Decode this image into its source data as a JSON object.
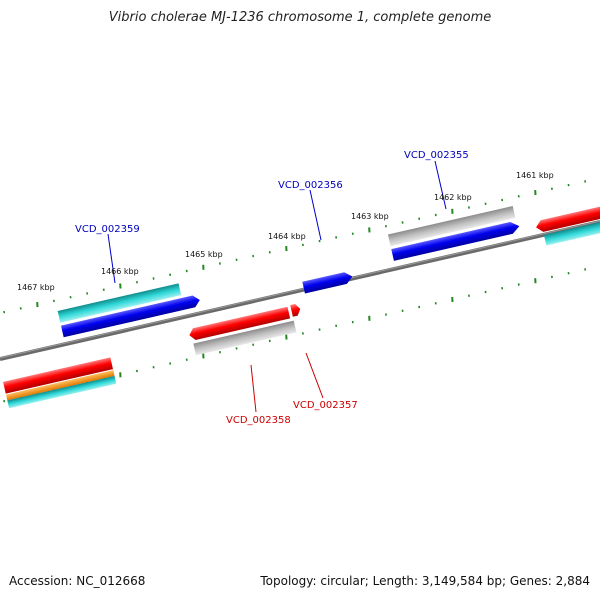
{
  "title": "Vibrio cholerae MJ-1236 chromosome 1, complete genome",
  "footer": {
    "accession": "Accession: NC_012668",
    "topology": "Topology: circular; Length: 3,149,584 bp; Genes: 2,884"
  },
  "colors": {
    "backbone": "#777777",
    "forward_cds": "#e00000",
    "reverse_cds": "#0000dd",
    "gene_forward": "#20c8c8",
    "gene_reverse": "#b8b8b8",
    "other": "#f09010",
    "ticks": "#228822",
    "label_forward": "#cc0000",
    "label_reverse": "#0000bb"
  },
  "kbp_labels": [
    "1467 kbp",
    "1466 kbp",
    "1465 kbp",
    "1464 kbp",
    "1463 kbp",
    "1462 kbp",
    "1461 kbp"
  ],
  "gene_labels": {
    "g2359": "VCD_002359",
    "g2356": "VCD_002356",
    "g2355": "VCD_002355",
    "g2358": "VCD_002358",
    "g2357": "VCD_002357"
  }
}
